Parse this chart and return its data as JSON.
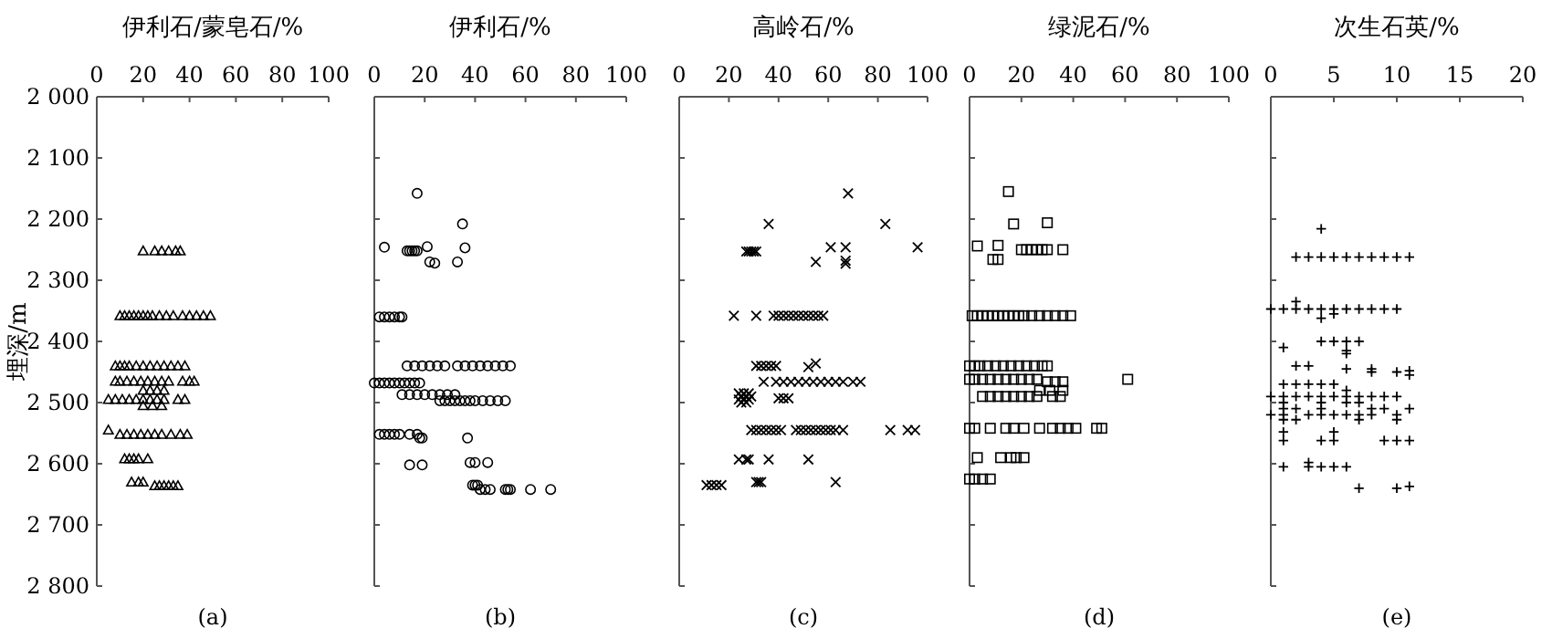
{
  "chart_data": [
    {
      "type": "scatter",
      "xlabel": "伊利石/蒙皂石/%",
      "ylabel": "埋深/m",
      "xlim": [
        0,
        100
      ],
      "xticks": [
        0,
        20,
        40,
        60,
        80,
        100
      ],
      "ylim": [
        2800,
        2000
      ],
      "yticks": [
        {
          "value": 2000,
          "label": "2 000"
        },
        {
          "value": 2100,
          "label": "2 100"
        },
        {
          "value": 2200,
          "label": "2 200"
        },
        {
          "value": 2300,
          "label": "2 300"
        },
        {
          "value": 2400,
          "label": "2 400"
        },
        {
          "value": 2500,
          "label": "2 500"
        },
        {
          "value": 2600,
          "label": "2 600"
        },
        {
          "value": 2700,
          "label": "2 700"
        },
        {
          "value": 2800,
          "label": "2 800"
        }
      ],
      "marker": "triangle",
      "annotations": [
        "(a)"
      ],
      "series": [
        {
          "color": "#000000",
          "x": [
            20,
            25,
            28,
            31,
            34,
            36,
            10,
            12,
            14,
            16,
            18,
            20,
            22,
            24,
            27,
            30,
            33,
            37,
            40,
            43,
            46,
            49,
            8,
            10,
            12,
            14,
            17,
            20,
            23,
            26,
            29,
            32,
            35,
            38,
            8,
            10,
            13,
            16,
            19,
            22,
            25,
            28,
            31,
            37,
            40,
            42,
            20,
            23,
            26,
            29,
            5,
            8,
            11,
            14,
            17,
            20,
            23,
            26,
            29,
            35,
            38,
            20,
            24,
            28,
            5,
            10,
            13,
            16,
            19,
            22,
            25,
            28,
            32,
            36,
            39,
            12,
            14,
            16,
            18,
            22,
            15,
            18,
            20,
            25,
            27,
            29,
            31,
            33,
            35
          ],
          "values": [
            2252,
            2252,
            2252,
            2252,
            2252,
            2252,
            2358,
            2358,
            2358,
            2358,
            2358,
            2358,
            2358,
            2358,
            2358,
            2358,
            2358,
            2358,
            2358,
            2358,
            2358,
            2358,
            2440,
            2440,
            2440,
            2440,
            2440,
            2440,
            2440,
            2440,
            2440,
            2440,
            2440,
            2440,
            2465,
            2465,
            2465,
            2465,
            2465,
            2465,
            2465,
            2465,
            2465,
            2465,
            2465,
            2465,
            2480,
            2480,
            2480,
            2480,
            2495,
            2495,
            2495,
            2495,
            2495,
            2495,
            2495,
            2495,
            2495,
            2495,
            2495,
            2505,
            2505,
            2505,
            2545,
            2552,
            2552,
            2552,
            2552,
            2552,
            2552,
            2552,
            2552,
            2552,
            2552,
            2592,
            2592,
            2592,
            2592,
            2592,
            2630,
            2630,
            2630,
            2636,
            2636,
            2636,
            2636,
            2636,
            2636
          ]
        }
      ]
    },
    {
      "type": "scatter",
      "xlabel": "伊利石/%",
      "xlim": [
        0,
        100
      ],
      "xticks": [
        0,
        20,
        40,
        60,
        80,
        100
      ],
      "ylim": [
        2800,
        2000
      ],
      "yticks": [
        2000,
        2100,
        2200,
        2300,
        2400,
        2500,
        2600,
        2700,
        2800
      ],
      "tick_labels": "x",
      "marker": "circle",
      "annotations": [
        "(b)"
      ],
      "series": [
        {
          "color": "#000000",
          "x": [
            17,
            35,
            4,
            21,
            36,
            13,
            14,
            15,
            16,
            17,
            22,
            24,
            33,
            2,
            4,
            6,
            8,
            10,
            11,
            13,
            16,
            19,
            22,
            25,
            28,
            33,
            36,
            39,
            42,
            45,
            48,
            51,
            54,
            0,
            2,
            4,
            6,
            8,
            10,
            12,
            14,
            16,
            18,
            11,
            14,
            17,
            20,
            23,
            26,
            29,
            32,
            26,
            28,
            30,
            32,
            34,
            36,
            38,
            40,
            43,
            46,
            49,
            52,
            2,
            4,
            6,
            8,
            10,
            14,
            17,
            18,
            19,
            37,
            38,
            40,
            45,
            14,
            19,
            39,
            40,
            41,
            42,
            44,
            46,
            52,
            53,
            54,
            62,
            70
          ],
          "values": [
            2158,
            2208,
            2246,
            2245,
            2247,
            2252,
            2252,
            2252,
            2252,
            2252,
            2270,
            2272,
            2270,
            2360,
            2360,
            2360,
            2360,
            2360,
            2360,
            2440,
            2440,
            2440,
            2440,
            2440,
            2440,
            2440,
            2440,
            2440,
            2440,
            2440,
            2440,
            2440,
            2440,
            2468,
            2468,
            2468,
            2468,
            2468,
            2468,
            2468,
            2468,
            2468,
            2468,
            2487,
            2487,
            2487,
            2487,
            2487,
            2487,
            2487,
            2487,
            2497,
            2497,
            2497,
            2497,
            2497,
            2497,
            2497,
            2497,
            2497,
            2497,
            2497,
            2497,
            2552,
            2552,
            2552,
            2552,
            2552,
            2552,
            2552,
            2558,
            2558,
            2558,
            2598,
            2598,
            2598,
            2602,
            2602,
            2635,
            2635,
            2635,
            2642,
            2642,
            2642,
            2642,
            2642,
            2642,
            2642,
            2642
          ]
        }
      ]
    },
    {
      "type": "scatter",
      "xlabel": "高岭石/%",
      "xlim": [
        0,
        100
      ],
      "xticks": [
        0,
        20,
        40,
        60,
        80,
        100
      ],
      "ylim": [
        2800,
        2000
      ],
      "yticks": [
        2000,
        2100,
        2200,
        2300,
        2400,
        2500,
        2600,
        2700,
        2800
      ],
      "tick_labels": "x",
      "marker": "x",
      "annotations": [
        "(c)"
      ],
      "series": [
        {
          "color": "#000000",
          "x": [
            68,
            36,
            83,
            61,
            67,
            96,
            27,
            28,
            29,
            30,
            31,
            55,
            67,
            67,
            22,
            31,
            38,
            40,
            42,
            44,
            46,
            48,
            50,
            52,
            54,
            56,
            58,
            31,
            33,
            35,
            37,
            39,
            52,
            55,
            34,
            39,
            42,
            45,
            48,
            51,
            54,
            57,
            60,
            63,
            66,
            70,
            73,
            24,
            26,
            28,
            25,
            27,
            29,
            24,
            26,
            28,
            25,
            27,
            40,
            42,
            44,
            29,
            31,
            33,
            35,
            37,
            39,
            41,
            47,
            49,
            51,
            53,
            55,
            57,
            59,
            61,
            63,
            66,
            85,
            92,
            95,
            24,
            27,
            28,
            36,
            52,
            31,
            32,
            33,
            63,
            11,
            13,
            15,
            17
          ],
          "values": [
            2158,
            2208,
            2208,
            2246,
            2246,
            2246,
            2253,
            2253,
            2253,
            2253,
            2253,
            2270,
            2268,
            2273,
            2358,
            2358,
            2358,
            2358,
            2358,
            2358,
            2358,
            2358,
            2358,
            2358,
            2358,
            2358,
            2358,
            2440,
            2440,
            2440,
            2440,
            2440,
            2442,
            2436,
            2466,
            2466,
            2466,
            2466,
            2466,
            2466,
            2466,
            2466,
            2466,
            2466,
            2466,
            2466,
            2466,
            2485,
            2485,
            2485,
            2490,
            2490,
            2490,
            2495,
            2495,
            2495,
            2500,
            2500,
            2493,
            2493,
            2493,
            2545,
            2545,
            2545,
            2545,
            2545,
            2545,
            2545,
            2545,
            2545,
            2545,
            2545,
            2545,
            2545,
            2545,
            2545,
            2545,
            2545,
            2545,
            2545,
            2545,
            2593,
            2593,
            2593,
            2593,
            2593,
            2630,
            2630,
            2630,
            2630,
            2635,
            2635,
            2635,
            2635
          ]
        }
      ]
    },
    {
      "type": "scatter",
      "xlabel": "绿泥石/%",
      "xlim": [
        0,
        100
      ],
      "xticks": [
        0,
        20,
        40,
        60,
        80,
        100
      ],
      "ylim": [
        2800,
        2000
      ],
      "yticks": [
        2000,
        2100,
        2200,
        2300,
        2400,
        2500,
        2600,
        2700,
        2800
      ],
      "tick_labels": "x",
      "marker": "square",
      "annotations": [
        "(d)"
      ],
      "series": [
        {
          "color": "#000000",
          "x": [
            15,
            17,
            30,
            3,
            11,
            20,
            22,
            24,
            26,
            28,
            30,
            36,
            9,
            11,
            1,
            3,
            5,
            7,
            9,
            11,
            13,
            15,
            17,
            19,
            21,
            24,
            27,
            30,
            33,
            36,
            39,
            0,
            2,
            4,
            7,
            10,
            13,
            16,
            19,
            22,
            25,
            28,
            30,
            0,
            2,
            5,
            8,
            11,
            14,
            17,
            20,
            23,
            26,
            61,
            30,
            33,
            36,
            27,
            31,
            36,
            5,
            8,
            11,
            14,
            17,
            20,
            23,
            26,
            32,
            35,
            0,
            2,
            8,
            14,
            17,
            21,
            27,
            32,
            35,
            38,
            41,
            49,
            51,
            3,
            12,
            16,
            18,
            21,
            0,
            2,
            5,
            8
          ],
          "values": [
            2155,
            2208,
            2206,
            2244,
            2243,
            2250,
            2250,
            2250,
            2250,
            2250,
            2250,
            2250,
            2266,
            2266,
            2358,
            2358,
            2358,
            2358,
            2358,
            2358,
            2358,
            2358,
            2358,
            2358,
            2358,
            2358,
            2358,
            2358,
            2358,
            2358,
            2358,
            2440,
            2440,
            2440,
            2440,
            2440,
            2440,
            2440,
            2440,
            2440,
            2440,
            2440,
            2440,
            2462,
            2462,
            2462,
            2462,
            2462,
            2462,
            2462,
            2462,
            2462,
            2462,
            2462,
            2466,
            2466,
            2466,
            2480,
            2480,
            2480,
            2490,
            2490,
            2490,
            2490,
            2490,
            2490,
            2490,
            2490,
            2490,
            2490,
            2542,
            2542,
            2542,
            2542,
            2542,
            2542,
            2542,
            2542,
            2542,
            2542,
            2542,
            2542,
            2542,
            2590,
            2590,
            2590,
            2590,
            2590,
            2625,
            2625,
            2625,
            2625
          ]
        }
      ]
    },
    {
      "type": "scatter",
      "xlabel": "次生石英/%",
      "xlim": [
        0,
        20
      ],
      "xticks": [
        0,
        5,
        10,
        15,
        20
      ],
      "ylim": [
        2800,
        2000
      ],
      "yticks": [
        2000,
        2100,
        2200,
        2300,
        2400,
        2500,
        2600,
        2700,
        2800
      ],
      "tick_labels": "x",
      "marker": "cross",
      "annotations": [
        "(e)"
      ],
      "series": [
        {
          "color": "#000000",
          "x": [
            4,
            2,
            3,
            4,
            5,
            6,
            7,
            8,
            9,
            10,
            11,
            2,
            0,
            1,
            2,
            3,
            4,
            5,
            6,
            7,
            8,
            9,
            10,
            5,
            4,
            4,
            5,
            6,
            7,
            1,
            6,
            6,
            2,
            3,
            6,
            8,
            10,
            11,
            11,
            8,
            1,
            2,
            3,
            4,
            5,
            6,
            0,
            1,
            2,
            3,
            4,
            5,
            6,
            7,
            8,
            9,
            10,
            1,
            4,
            6,
            7,
            1,
            2,
            4,
            8,
            9,
            11,
            0,
            1,
            3,
            4,
            5,
            6,
            7,
            8,
            10,
            1,
            2,
            7,
            10,
            1,
            5,
            1,
            4,
            5,
            9,
            10,
            11,
            3,
            1,
            3,
            4,
            5,
            6,
            7,
            10,
            11
          ],
          "values": [
            2216,
            2262,
            2262,
            2262,
            2262,
            2262,
            2262,
            2262,
            2262,
            2262,
            2262,
            2335,
            2347,
            2347,
            2347,
            2347,
            2347,
            2347,
            2347,
            2347,
            2347,
            2347,
            2347,
            2355,
            2362,
            2400,
            2400,
            2400,
            2400,
            2410,
            2415,
            2420,
            2440,
            2440,
            2445,
            2445,
            2450,
            2448,
            2455,
            2450,
            2470,
            2470,
            2470,
            2470,
            2470,
            2480,
            2490,
            2490,
            2490,
            2490,
            2490,
            2490,
            2490,
            2490,
            2490,
            2490,
            2490,
            2500,
            2500,
            2500,
            2500,
            2510,
            2510,
            2510,
            2510,
            2510,
            2510,
            2520,
            2520,
            2520,
            2520,
            2520,
            2520,
            2520,
            2520,
            2520,
            2528,
            2528,
            2528,
            2528,
            2548,
            2548,
            2562,
            2562,
            2562,
            2562,
            2562,
            2562,
            2598,
            2605,
            2605,
            2605,
            2605,
            2605,
            2640,
            2640,
            2637
          ]
        }
      ]
    }
  ]
}
